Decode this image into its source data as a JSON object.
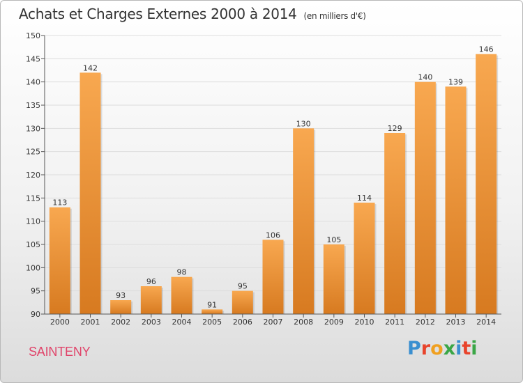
{
  "title": "Achats et Charges Externes 2000 à 2014",
  "unit": "(en milliers d'€)",
  "commune": "SAINTENY",
  "logo": {
    "text": "Proxiti",
    "colors": [
      "#3a8fd0",
      "#e8442c",
      "#f0a020",
      "#3aa646",
      "#3a8fd0",
      "#e8442c",
      "#3aa646"
    ]
  },
  "colors": {
    "bar_light": "#f8a850",
    "bar_dark": "#d77a20",
    "grid": "#dddddd",
    "commune": "#e0446a"
  },
  "chart_data": {
    "type": "bar",
    "categories": [
      "2000",
      "2001",
      "2002",
      "2003",
      "2004",
      "2005",
      "2006",
      "2007",
      "2008",
      "2009",
      "2010",
      "2011",
      "2012",
      "2013",
      "2014"
    ],
    "values": [
      113,
      142,
      93,
      96,
      98,
      91,
      95,
      106,
      130,
      105,
      114,
      129,
      140,
      139,
      146
    ],
    "ylim": [
      90,
      150
    ],
    "yticks": [
      90,
      95,
      100,
      105,
      110,
      115,
      120,
      125,
      130,
      135,
      140,
      145,
      150
    ],
    "grid": true,
    "data_labels": true
  }
}
